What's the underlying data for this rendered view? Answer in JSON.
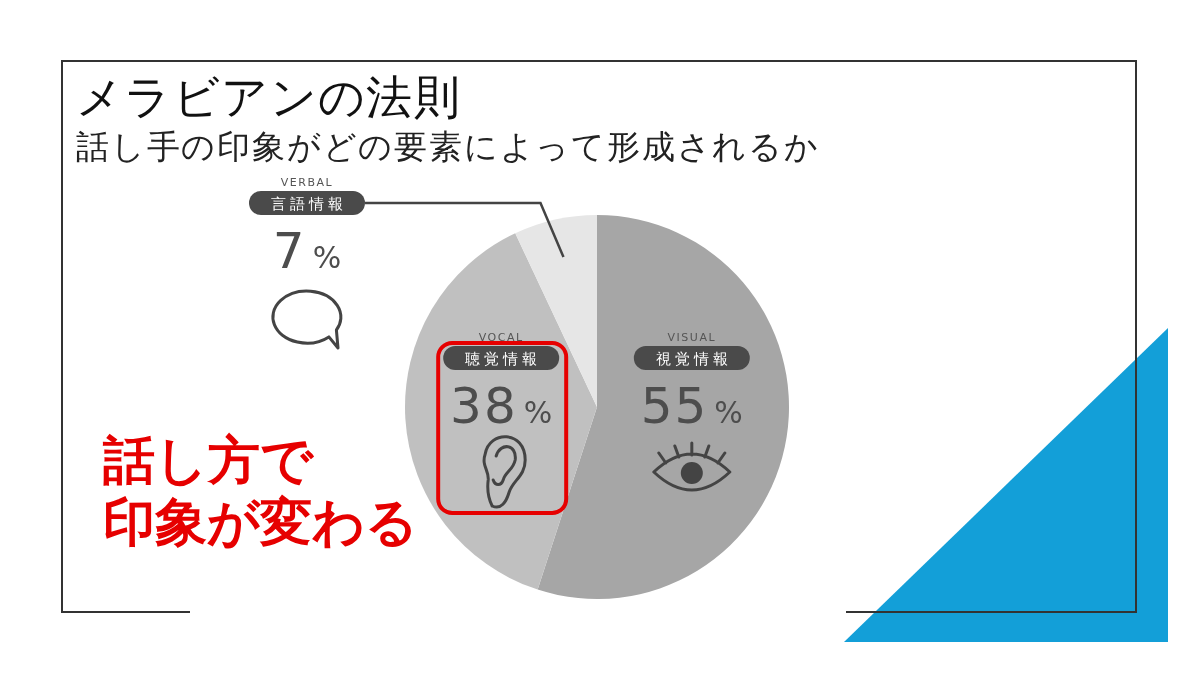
{
  "chart_data": {
    "type": "pie",
    "title": "メラビアンの法則",
    "subtitle": "話し手の印象がどの要素によって形成されるか",
    "categories": [
      "視覚情報",
      "聴覚情報",
      "言語情報"
    ],
    "values": [
      55,
      38,
      7
    ],
    "colors": [
      "#a6a6a6",
      "#c0c0c0",
      "#e6e6e6"
    ],
    "value_labels": [
      "55%",
      "38%",
      "7%"
    ],
    "annotations": [
      "VISUAL",
      "VOCAL",
      "VERBAL",
      "話し方で",
      "印象が変わる"
    ]
  }
}
